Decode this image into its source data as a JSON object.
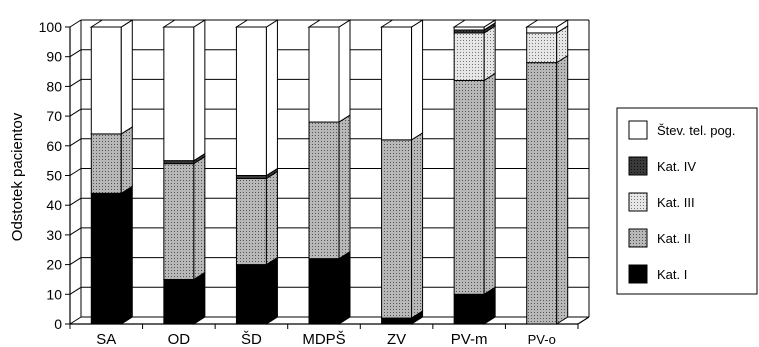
{
  "chart_data": {
    "type": "bar",
    "stacked": true,
    "three_d": true,
    "title": "",
    "xlabel": "",
    "ylabel": "Odstotek pacientov",
    "ylim": [
      0,
      100
    ],
    "yticks": [
      "0",
      "10",
      "20",
      "30",
      "40",
      "50",
      "60",
      "70",
      "80",
      "90",
      "100"
    ],
    "categories": [
      "SA",
      "OD",
      "ŠD",
      "MDPŠ",
      "ZV",
      "PV-m",
      "PV-o"
    ],
    "legend_position": "right",
    "grid": true,
    "series": [
      {
        "name": "Kat. I",
        "color": "#000000",
        "values": [
          44,
          15,
          20,
          22,
          2,
          10,
          0
        ]
      },
      {
        "name": "Kat. II",
        "color": "#8c8c8c",
        "values": [
          20,
          39,
          29,
          46,
          60,
          72,
          88
        ]
      },
      {
        "name": "Kat. III",
        "color": "#cfcfcf",
        "values": [
          0,
          0,
          0,
          0,
          0,
          16,
          10
        ]
      },
      {
        "name": "Kat. IV",
        "color": "#2e2e2e",
        "values": [
          0,
          1,
          1,
          0,
          0,
          1,
          0
        ]
      },
      {
        "name": "Štev. tel. pog.",
        "color": "#ffffff",
        "values": [
          36,
          45,
          50,
          32,
          38,
          1,
          2
        ]
      }
    ]
  }
}
